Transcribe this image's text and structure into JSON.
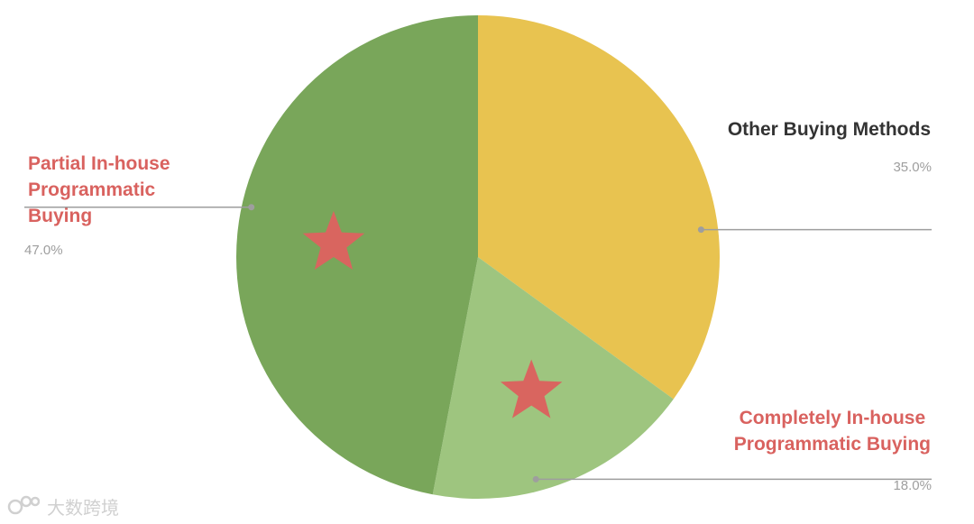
{
  "chart_data": {
    "type": "pie",
    "slices": [
      {
        "label": "Other Buying Methods",
        "value": 35.0,
        "display": "35.0%",
        "color": "#e8c350",
        "label_color": "#333333",
        "starred": false
      },
      {
        "label": "Completely In-house Programmatic Buying",
        "value": 18.0,
        "display": "18.0%",
        "color": "#9ec57f",
        "label_color": "#d9625f",
        "starred": true
      },
      {
        "label": "Partial In-house Programmatic Buying",
        "value": 47.0,
        "display": "47.0%",
        "color": "#79a65a",
        "label_color": "#d9625f",
        "starred": true
      }
    ],
    "start_angle_deg": 0,
    "direction": "clockwise",
    "star_color": "#d9655f"
  },
  "watermark": {
    "text": "大数跨境"
  },
  "colors": {
    "leader_line": "#9e9e9e",
    "watermark": "#d0d0d0"
  }
}
